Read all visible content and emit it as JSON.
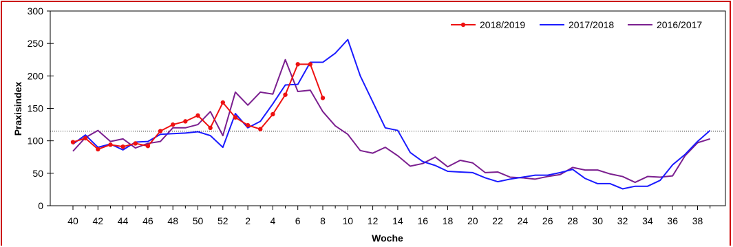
{
  "chart_data": {
    "type": "line",
    "xlabel": "Woche",
    "ylabel": "Praxisindex",
    "ylim": [
      0,
      300
    ],
    "y_ticks": [
      0,
      50,
      100,
      150,
      200,
      250,
      300
    ],
    "weeks": [
      40,
      41,
      42,
      43,
      44,
      45,
      46,
      47,
      48,
      49,
      50,
      51,
      52,
      1,
      2,
      3,
      4,
      5,
      6,
      7,
      8,
      9,
      10,
      11,
      12,
      13,
      14,
      15,
      16,
      17,
      18,
      19,
      20,
      21,
      22,
      23,
      24,
      25,
      26,
      27,
      28,
      29,
      30,
      31,
      32,
      33,
      34,
      35,
      36,
      37,
      38,
      39
    ],
    "x_tick_labels": [
      "40",
      "42",
      "44",
      "46",
      "48",
      "50",
      "52",
      "2",
      "4",
      "6",
      "8",
      "10",
      "12",
      "14",
      "16",
      "18",
      "20",
      "22",
      "24",
      "26",
      "28",
      "30",
      "32",
      "34",
      "36",
      "38"
    ],
    "reference_line": 115,
    "grid": false,
    "legend_position": "top-right",
    "series": [
      {
        "name": "2018/2019",
        "color": "#ee1111",
        "markers": true,
        "values": [
          98,
          104,
          87,
          94,
          91,
          96,
          92,
          115,
          125,
          130,
          139,
          120,
          159,
          136,
          124,
          118,
          141,
          171,
          218,
          218,
          166
        ]
      },
      {
        "name": "2017/2018",
        "color": "#1a1aff",
        "markers": false,
        "values": [
          95,
          109,
          90,
          95,
          86,
          98,
          99,
          110,
          111,
          112,
          114,
          108,
          90,
          142,
          120,
          130,
          157,
          186,
          187,
          221,
          221,
          235,
          256,
          200,
          160,
          120,
          116,
          82,
          68,
          62,
          53,
          52,
          51,
          43,
          37,
          41,
          44,
          47,
          47,
          51,
          56,
          42,
          34,
          34,
          26,
          30,
          30,
          39,
          63,
          79,
          99,
          116
        ]
      },
      {
        "name": "2016/2017",
        "color": "#7b1f8f",
        "markers": false,
        "values": [
          84,
          105,
          116,
          99,
          103,
          89,
          96,
          99,
          120,
          120,
          125,
          145,
          108,
          175,
          155,
          175,
          172,
          225,
          176,
          178,
          145,
          123,
          110,
          85,
          81,
          90,
          77,
          61,
          65,
          75,
          60,
          70,
          66,
          51,
          52,
          44,
          43,
          41,
          45,
          48,
          59,
          55,
          55,
          49,
          45,
          36,
          45,
          44,
          46,
          77,
          97,
          103
        ]
      }
    ]
  }
}
